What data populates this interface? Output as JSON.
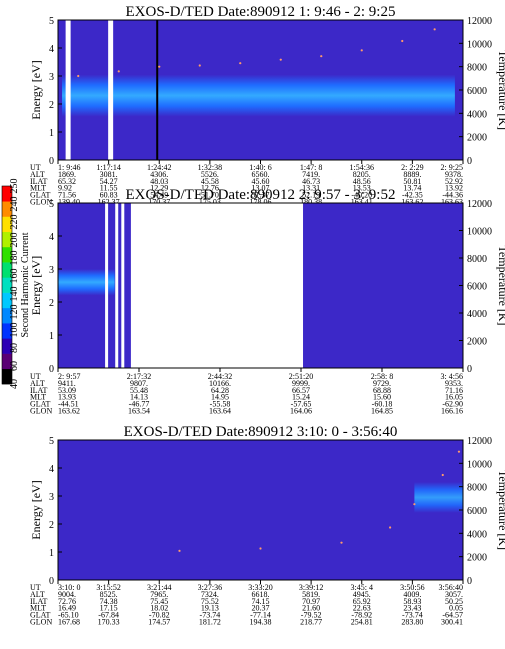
{
  "chart_data": [
    {
      "type": "heatmap",
      "title": "EXOS-D/TED  Date:890912  1: 9:46 - 2: 9:25",
      "ylabel": "Energy [eV]",
      "y2label": "Temperature [K]",
      "ylim": [
        0,
        5
      ],
      "y2lim": [
        0,
        12000
      ],
      "yticks": [
        "0",
        "1",
        "2",
        "3",
        "4",
        "5"
      ],
      "y2ticks": [
        "0",
        "2000",
        "4000",
        "6000",
        "8000",
        "10000",
        "12000"
      ],
      "colors": {
        "background": "#3c28c8",
        "band": "#1f6cff",
        "core": "#33aaff",
        "temperature_dots": "#ff9a6a"
      },
      "band": {
        "center": 2.3,
        "width": 1.5
      },
      "gaps": [
        0.025,
        0.13
      ],
      "data_gaps": [
        0.245
      ],
      "temperature": [
        [
          0.05,
          7200
        ],
        [
          0.15,
          7600
        ],
        [
          0.25,
          8000
        ],
        [
          0.35,
          8100
        ],
        [
          0.45,
          8300
        ],
        [
          0.55,
          8600
        ],
        [
          0.65,
          8900
        ],
        [
          0.75,
          9400
        ],
        [
          0.85,
          10200
        ],
        [
          0.93,
          11200
        ]
      ],
      "rows": [
        {
          "label": "UT",
          "values": [
            "1: 9:46",
            "1:17:14",
            "1:24:42",
            "1:32:38",
            "1:40: 6",
            "1:47: 8",
            "1:54:36",
            "2: 2:29",
            "2: 9:25"
          ]
        },
        {
          "label": "ALT",
          "values": [
            "1869.",
            "3081.",
            "4306.",
            "5526.",
            "6560.",
            "7419.",
            "8205.",
            "8889.",
            "9378."
          ]
        },
        {
          "label": "ILAT",
          "values": [
            "65.32",
            "54.27",
            "48.03",
            "45.58",
            "45.60",
            "46.73",
            "48.56",
            "50.81",
            "52.92"
          ]
        },
        {
          "label": "MLT",
          "values": [
            "9.92",
            "11.55",
            "12.29",
            "12.76",
            "13.07",
            "13.31",
            "13.53",
            "13.74",
            "13.92"
          ]
        },
        {
          "label": "GLAT",
          "values": [
            "71.56",
            "60.83",
            "54.49",
            "51.70",
            "51.37",
            "52.19",
            "-40.20",
            "-42.35",
            "-44.36"
          ]
        },
        {
          "label": "GLON",
          "values": [
            "139.40",
            "162.37",
            "170.37",
            "175.03",
            "178.06",
            "180.38",
            "163.41",
            "163.62",
            "163.63"
          ]
        }
      ]
    },
    {
      "type": "heatmap",
      "title": "EXOS-D/TED  Date:890912  2: 9:57 - 3: 9:52",
      "ylabel": "Energy [eV]",
      "y2label": "Temperature [K]",
      "ylim": [
        0,
        5
      ],
      "y2lim": [
        0,
        12000
      ],
      "yticks": [
        "0",
        "1",
        "2",
        "3",
        "4",
        "5"
      ],
      "y2ticks": [
        "0",
        "2000",
        "4000",
        "6000",
        "8000",
        "10000",
        "12000"
      ],
      "colors": {
        "background": "#3c28c8",
        "band": "#1f6cff",
        "core": "#33aaff",
        "temperature_dots": "#ff9a6a"
      },
      "data_gap": [
        0.18,
        0.605
      ],
      "rows": [
        {
          "label": "UT",
          "values": [
            "2: 9:57",
            "2:17:32",
            "2:44:32",
            "2:51:20",
            "2:58: 8",
            "3: 4:56"
          ]
        },
        {
          "label": "ALT",
          "values": [
            "9411.",
            "9807.",
            "10166.",
            "9999.",
            "9729.",
            "9353."
          ]
        },
        {
          "label": "ILAT",
          "values": [
            "53.09",
            "55.48",
            "64.28",
            "66.57",
            "68.88",
            "71.16"
          ]
        },
        {
          "label": "MLT",
          "values": [
            "13.93",
            "14.13",
            "14.95",
            "15.24",
            "15.60",
            "16.05"
          ]
        },
        {
          "label": "GLAT",
          "values": [
            "-44.51",
            "-46.77",
            "-55.58",
            "-57.65",
            "-60.18",
            "-62.90"
          ]
        },
        {
          "label": "GLON",
          "values": [
            "163.62",
            "163.54",
            "163.64",
            "164.06",
            "164.85",
            "166.16"
          ]
        }
      ]
    },
    {
      "type": "heatmap",
      "title": "EXOS-D/TED  Date:890912  3:10: 0 - 3:56:40",
      "ylabel": "Energy [eV]",
      "y2label": "Temperature [K]",
      "ylim": [
        0,
        5
      ],
      "y2lim": [
        0,
        12000
      ],
      "yticks": [
        "0",
        "1",
        "2",
        "3",
        "4",
        "5"
      ],
      "y2ticks": [
        "0",
        "2000",
        "4000",
        "6000",
        "8000",
        "10000",
        "12000"
      ],
      "colors": {
        "background": "#3c28c8",
        "band": "#1f6cff",
        "core": "#33aaff",
        "temperature_dots": "#ff9a6a"
      },
      "temperature": [
        [
          0.3,
          2500
        ],
        [
          0.5,
          2700
        ],
        [
          0.7,
          3200
        ],
        [
          0.82,
          4500
        ],
        [
          0.88,
          6500
        ],
        [
          0.95,
          9000
        ],
        [
          0.99,
          11000
        ]
      ],
      "rows": [
        {
          "label": "UT",
          "values": [
            "3:10: 0",
            "3:15:52",
            "3:21:44",
            "3:27:36",
            "3:33:20",
            "3:39:12",
            "3:45: 4",
            "3:50:56",
            "3:56:40"
          ]
        },
        {
          "label": "ALT",
          "values": [
            "9004.",
            "8525.",
            "7965.",
            "7324.",
            "6618.",
            "5819.",
            "4945.",
            "4009.",
            "3057."
          ]
        },
        {
          "label": "ILAT",
          "values": [
            "72.76",
            "74.38",
            "75.45",
            "75.52",
            "74.15",
            "70.97",
            "65.92",
            "58.93",
            "50.25"
          ]
        },
        {
          "label": "MLT",
          "values": [
            "16.49",
            "17.15",
            "18.02",
            "19.13",
            "20.37",
            "21.60",
            "22.63",
            "23.43",
            "0.05"
          ]
        },
        {
          "label": "GLAT",
          "values": [
            "-65.10",
            "-67.84",
            "-70.82",
            "-73.74",
            "-77.14",
            "-79.52",
            "-78.92",
            "-73.74",
            "-64.57"
          ]
        },
        {
          "label": "GLON",
          "values": [
            "167.68",
            "170.33",
            "174.57",
            "181.72",
            "194.38",
            "218.77",
            "254.81",
            "283.80",
            "300.41"
          ]
        }
      ]
    }
  ],
  "colorbar": {
    "title": "Second Harmonic Current",
    "ticks": [
      "40",
      "60",
      "80",
      "100",
      "120",
      "140",
      "160",
      "180",
      "200",
      "220",
      "240",
      "250"
    ],
    "colors": [
      "#000000",
      "#5a0075",
      "#2c00b5",
      "#0033ff",
      "#0088ff",
      "#00c8ff",
      "#00e0c0",
      "#00e070",
      "#30e000",
      "#b0f000",
      "#ffe000",
      "#ff8c00",
      "#ff0000"
    ]
  }
}
